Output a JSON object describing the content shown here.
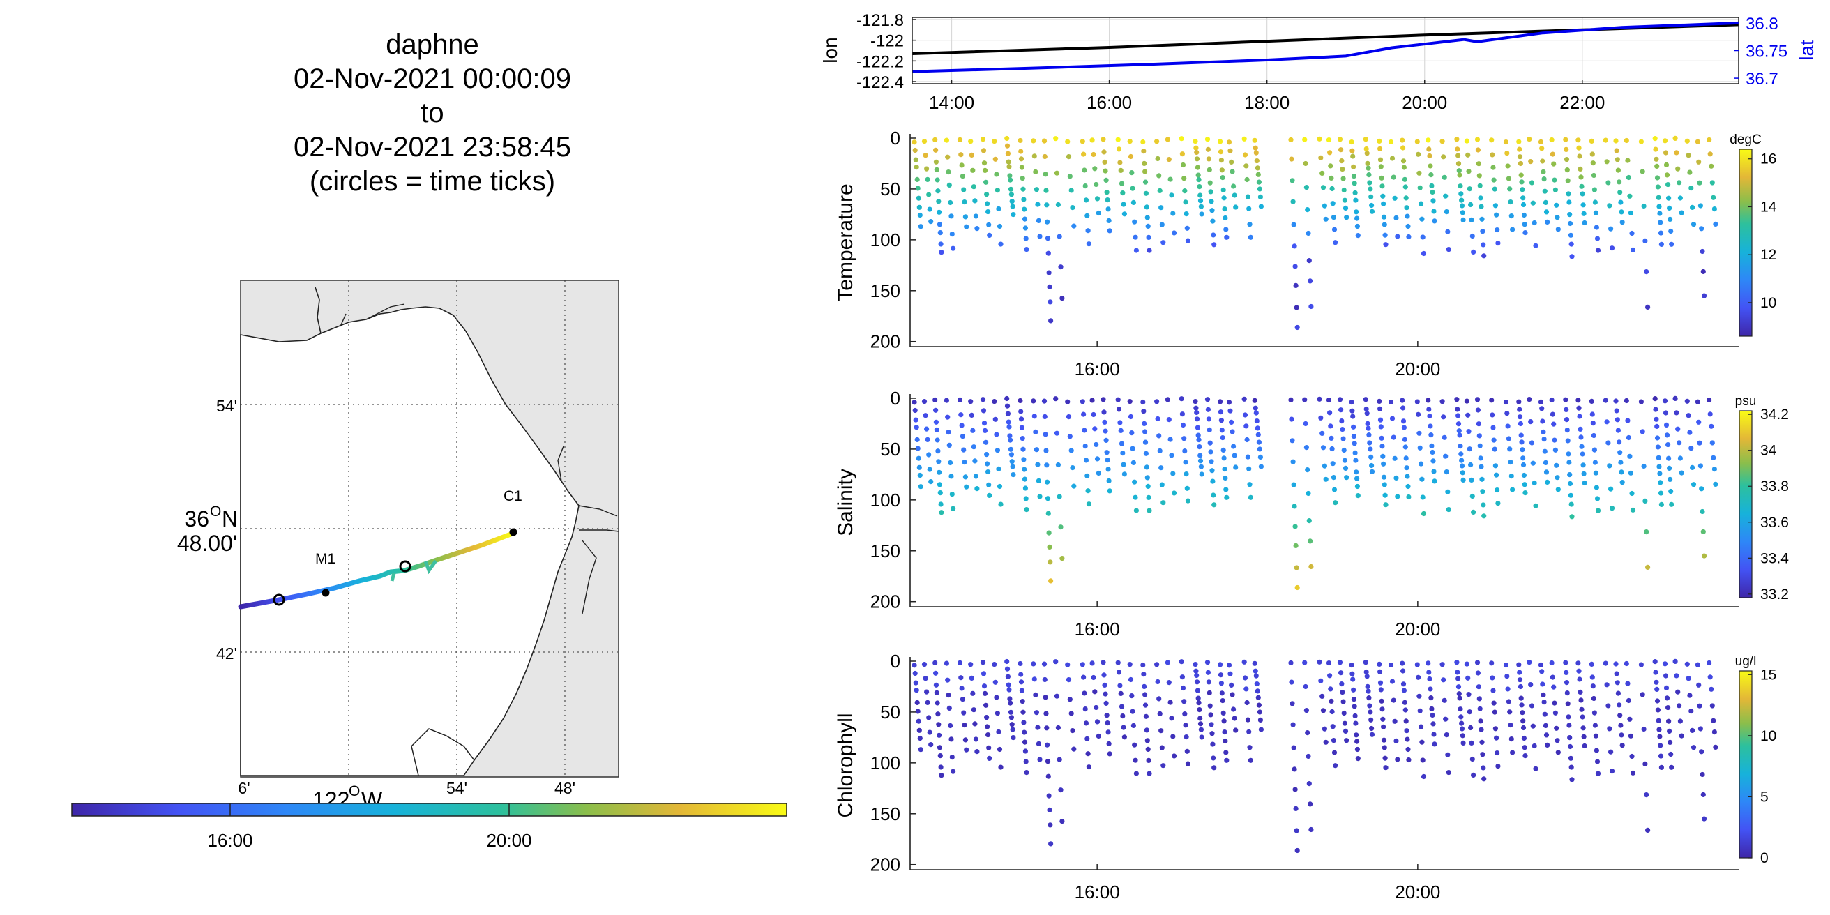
{
  "title": {
    "platform": "daphne",
    "start": "02-Nov-2021 00:00:09",
    "to": "to",
    "end": "02-Nov-2021 23:58:45",
    "note": "(circles = time ticks)"
  },
  "map": {
    "lat_labels": [
      "54'",
      "36",
      "48.00'",
      "42'"
    ],
    "lat_degree_unit": "O",
    "lat_hemisphere": "N",
    "lon_labels": [
      "6'",
      "54'",
      "48'"
    ],
    "lon_main": "122",
    "lon_degree_unit": "O",
    "lon_hemisphere": "W",
    "station_labels": [
      "M1",
      "C1"
    ],
    "land_color": "#e6e6e6",
    "water_color": "#ffffff",
    "colorbar_ticks": [
      "16:00",
      "20:00"
    ]
  },
  "chart_data": [
    {
      "type": "line",
      "ylabel": "lon",
      "y2label": "lat",
      "xlim": [
        "13:30",
        "23:59"
      ],
      "xticks": [
        "14:00",
        "16:00",
        "18:00",
        "20:00",
        "22:00"
      ],
      "ylim": [
        -122.42,
        -121.78
      ],
      "yticks": [
        "-121.8",
        "-122",
        "-122.2",
        "-122.4"
      ],
      "y2lim": [
        36.69,
        36.81
      ],
      "y2ticks": [
        "36.8",
        "36.75",
        "36.7"
      ],
      "grid": true,
      "series": [
        {
          "name": "lon",
          "axis": "left",
          "color": "#000000",
          "x": [
            "13:30",
            "16:00",
            "18:00",
            "20:00",
            "22:00",
            "23:59"
          ],
          "values": [
            -122.13,
            -122.07,
            -122.01,
            -121.95,
            -121.9,
            -121.85
          ]
        },
        {
          "name": "lat",
          "axis": "right",
          "color": "#0000ee",
          "x": [
            "13:30",
            "15:00",
            "16:30",
            "18:00",
            "19:00",
            "19:35",
            "20:30",
            "20:40",
            "21:30",
            "22:30",
            "23:59"
          ],
          "values": [
            36.712,
            36.718,
            36.725,
            36.733,
            36.74,
            36.755,
            36.77,
            36.766,
            36.782,
            36.792,
            36.8
          ]
        }
      ]
    },
    {
      "type": "scatter",
      "ylabel": "Temperature",
      "colorbar_unit": "degC",
      "clim": [
        8.6,
        16.4
      ],
      "cticks": [
        "16",
        "14",
        "12",
        "10"
      ],
      "ylim": [
        0,
        205
      ],
      "yticks": [
        "0",
        "50",
        "100",
        "150",
        "200"
      ],
      "xticks": [
        "16:00",
        "20:00"
      ],
      "xlim": [
        "13:40",
        "23:55"
      ],
      "variable": "temp"
    },
    {
      "type": "scatter",
      "ylabel": "Salinity",
      "colorbar_unit": "psu",
      "clim": [
        33.18,
        34.22
      ],
      "cticks": [
        "34.2",
        "34",
        "33.8",
        "33.6",
        "33.4",
        "33.2"
      ],
      "ylim": [
        0,
        205
      ],
      "yticks": [
        "0",
        "50",
        "100",
        "150",
        "200"
      ],
      "xticks": [
        "16:00",
        "20:00"
      ],
      "xlim": [
        "13:40",
        "23:55"
      ],
      "variable": "sal"
    },
    {
      "type": "scatter",
      "ylabel": "Chlorophyll",
      "colorbar_unit": "ug/l",
      "clim": [
        0,
        15.3
      ],
      "cticks": [
        "15",
        "10",
        "5",
        "0"
      ],
      "ylim": [
        0,
        205
      ],
      "yticks": [
        "0",
        "50",
        "100",
        "150",
        "200"
      ],
      "xticks": [
        "16:00",
        "20:00"
      ],
      "xlim": [
        "13:40",
        "23:55"
      ],
      "variable": "chl"
    }
  ]
}
